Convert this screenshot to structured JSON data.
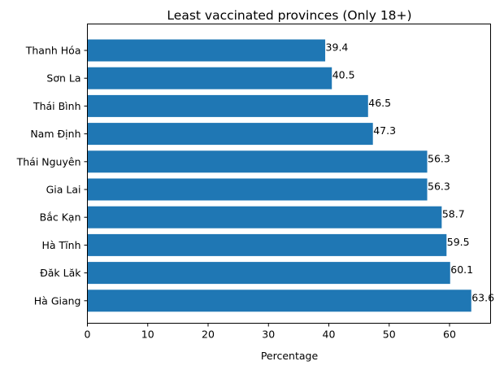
{
  "chart_data": {
    "type": "bar",
    "orientation": "horizontal",
    "title": "Least vaccinated provinces (Only 18+)",
    "xlabel": "Percentage",
    "ylabel": "",
    "xlim": [
      0,
      66.8
    ],
    "xticks": [
      0,
      10,
      20,
      30,
      40,
      50,
      60
    ],
    "grid": false,
    "bar_color": "#1f77b4",
    "categories": [
      "Thanh Hóa",
      "Sơn La",
      "Thái Bình",
      "Nam Định",
      "Thái Nguyên",
      "Gia Lai",
      "Bắc Kạn",
      "Hà Tĩnh",
      "Đăk Lăk",
      "Hà Giang"
    ],
    "values": [
      39.4,
      40.5,
      46.5,
      47.3,
      56.3,
      56.3,
      58.7,
      59.5,
      60.1,
      63.6
    ],
    "data_labels": [
      "39.4",
      "40.5",
      "46.5",
      "47.3",
      "56.3",
      "56.3",
      "58.7",
      "59.5",
      "60.1",
      "63.6"
    ]
  }
}
